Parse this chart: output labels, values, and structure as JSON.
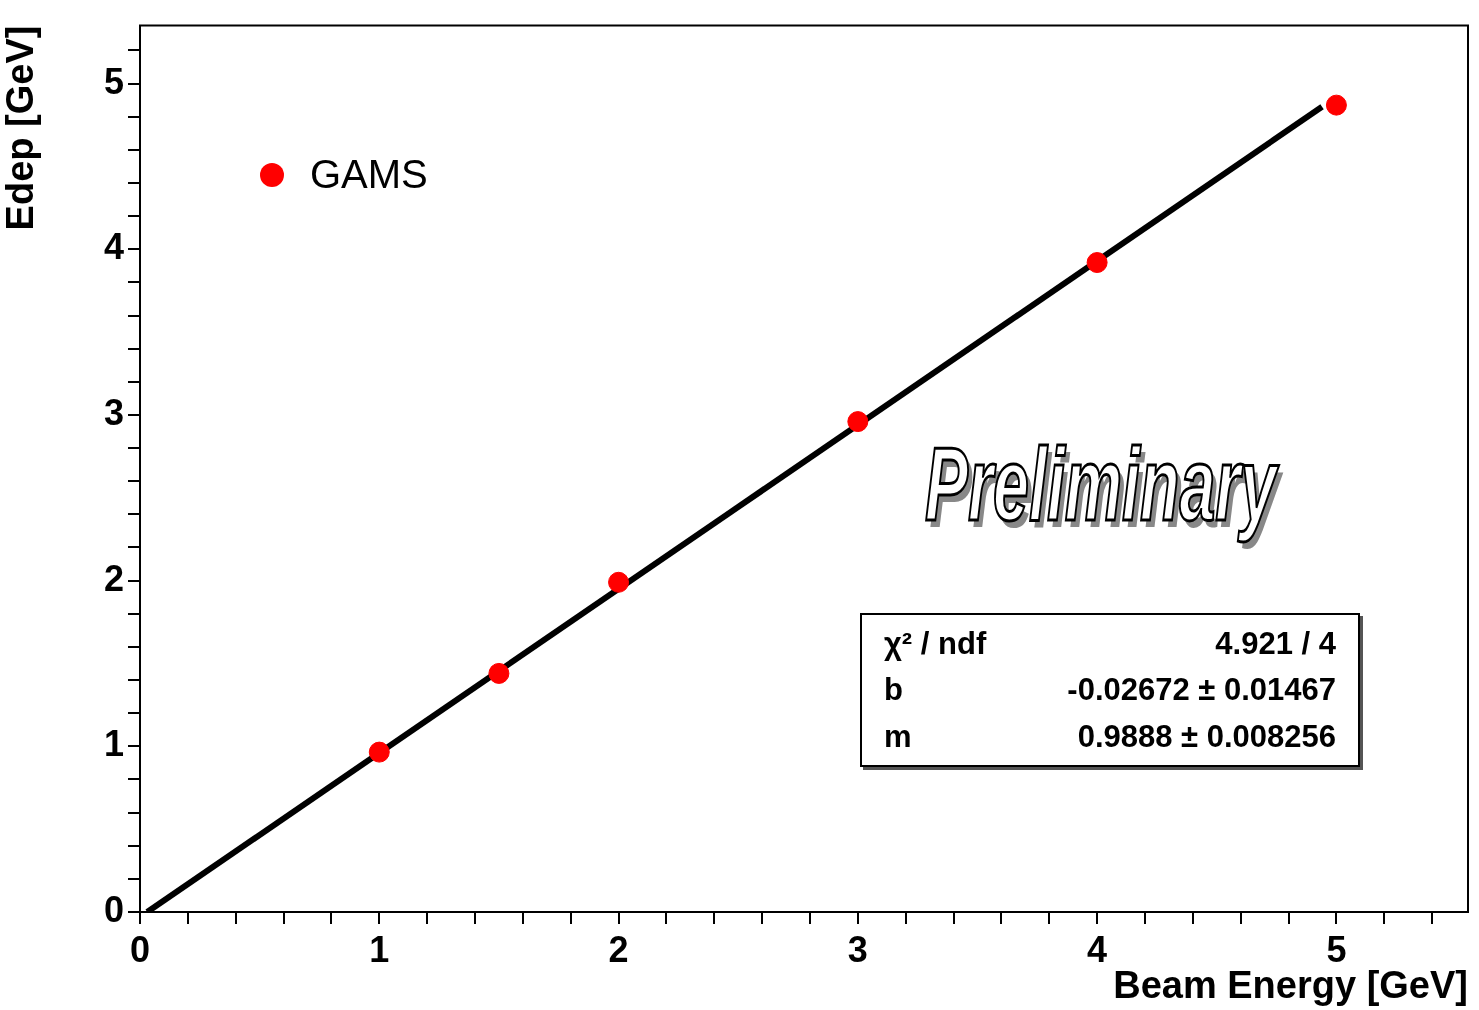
{
  "chart_data": {
    "type": "scatter",
    "xlabel": "Beam Energy [GeV]",
    "ylabel": "Edep [GeV]",
    "xlim": [
      0,
      5.55
    ],
    "ylim": [
      0,
      5.35
    ],
    "xticks": [
      0,
      {
        "value": 0.2,
        "label": null
      },
      {
        "value": 0.4,
        "label": null
      },
      {
        "value": 0.6,
        "label": null
      },
      {
        "value": 0.8,
        "label": null
      },
      1,
      {
        "value": 1.2,
        "label": null
      },
      {
        "value": 1.4,
        "label": null
      },
      {
        "value": 1.6,
        "label": null
      },
      {
        "value": 1.8,
        "label": null
      },
      2,
      {
        "value": 2.2,
        "label": null
      },
      {
        "value": 2.4,
        "label": null
      },
      {
        "value": 2.6,
        "label": null
      },
      {
        "value": 2.8,
        "label": null
      },
      3,
      {
        "value": 3.2,
        "label": null
      },
      {
        "value": 3.4,
        "label": null
      },
      {
        "value": 3.6,
        "label": null
      },
      {
        "value": 3.8,
        "label": null
      },
      4,
      {
        "value": 4.2,
        "label": null
      },
      {
        "value": 4.4,
        "label": null
      },
      {
        "value": 4.6,
        "label": null
      },
      {
        "value": 4.8,
        "label": null
      },
      5,
      {
        "value": 5.2,
        "label": null
      },
      {
        "value": 5.4,
        "label": null
      }
    ],
    "yticks": [
      0,
      {
        "value": 0.2,
        "label": null
      },
      {
        "value": 0.4,
        "label": null
      },
      {
        "value": 0.6,
        "label": null
      },
      {
        "value": 0.8,
        "label": null
      },
      1,
      {
        "value": 1.2,
        "label": null
      },
      {
        "value": 1.4,
        "label": null
      },
      {
        "value": 1.6,
        "label": null
      },
      {
        "value": 1.8,
        "label": null
      },
      2,
      {
        "value": 2.2,
        "label": null
      },
      {
        "value": 2.4,
        "label": null
      },
      {
        "value": 2.6,
        "label": null
      },
      {
        "value": 2.8,
        "label": null
      },
      3,
      {
        "value": 3.2,
        "label": null
      },
      {
        "value": 3.4,
        "label": null
      },
      {
        "value": 3.6,
        "label": null
      },
      {
        "value": 3.8,
        "label": null
      },
      4,
      {
        "value": 4.2,
        "label": null
      },
      {
        "value": 4.4,
        "label": null
      },
      {
        "value": 4.6,
        "label": null
      },
      {
        "value": 4.8,
        "label": null
      },
      5,
      {
        "value": 5.2,
        "label": null
      }
    ],
    "series": [
      {
        "name": "GAMS",
        "color": "#ff0000",
        "x": [
          1,
          1.5,
          2,
          3,
          4,
          5
        ],
        "values": [
          0.965,
          1.44,
          1.99,
          2.96,
          3.92,
          4.87
        ]
      },
      {
        "type": "line",
        "marker": "none",
        "color": "#000000",
        "x": [
          0.03,
          4.94
        ],
        "values": [
          0.0,
          4.86
        ]
      }
    ],
    "marker": "circle",
    "legend": "top left",
    "grid": false,
    "annotations": [
      "Preliminary",
      "χ² / ndf",
      "4.921 / 4",
      "b",
      "-0.02672 ± 0.01467",
      "m",
      "0.9888 ± 0.008256"
    ]
  }
}
